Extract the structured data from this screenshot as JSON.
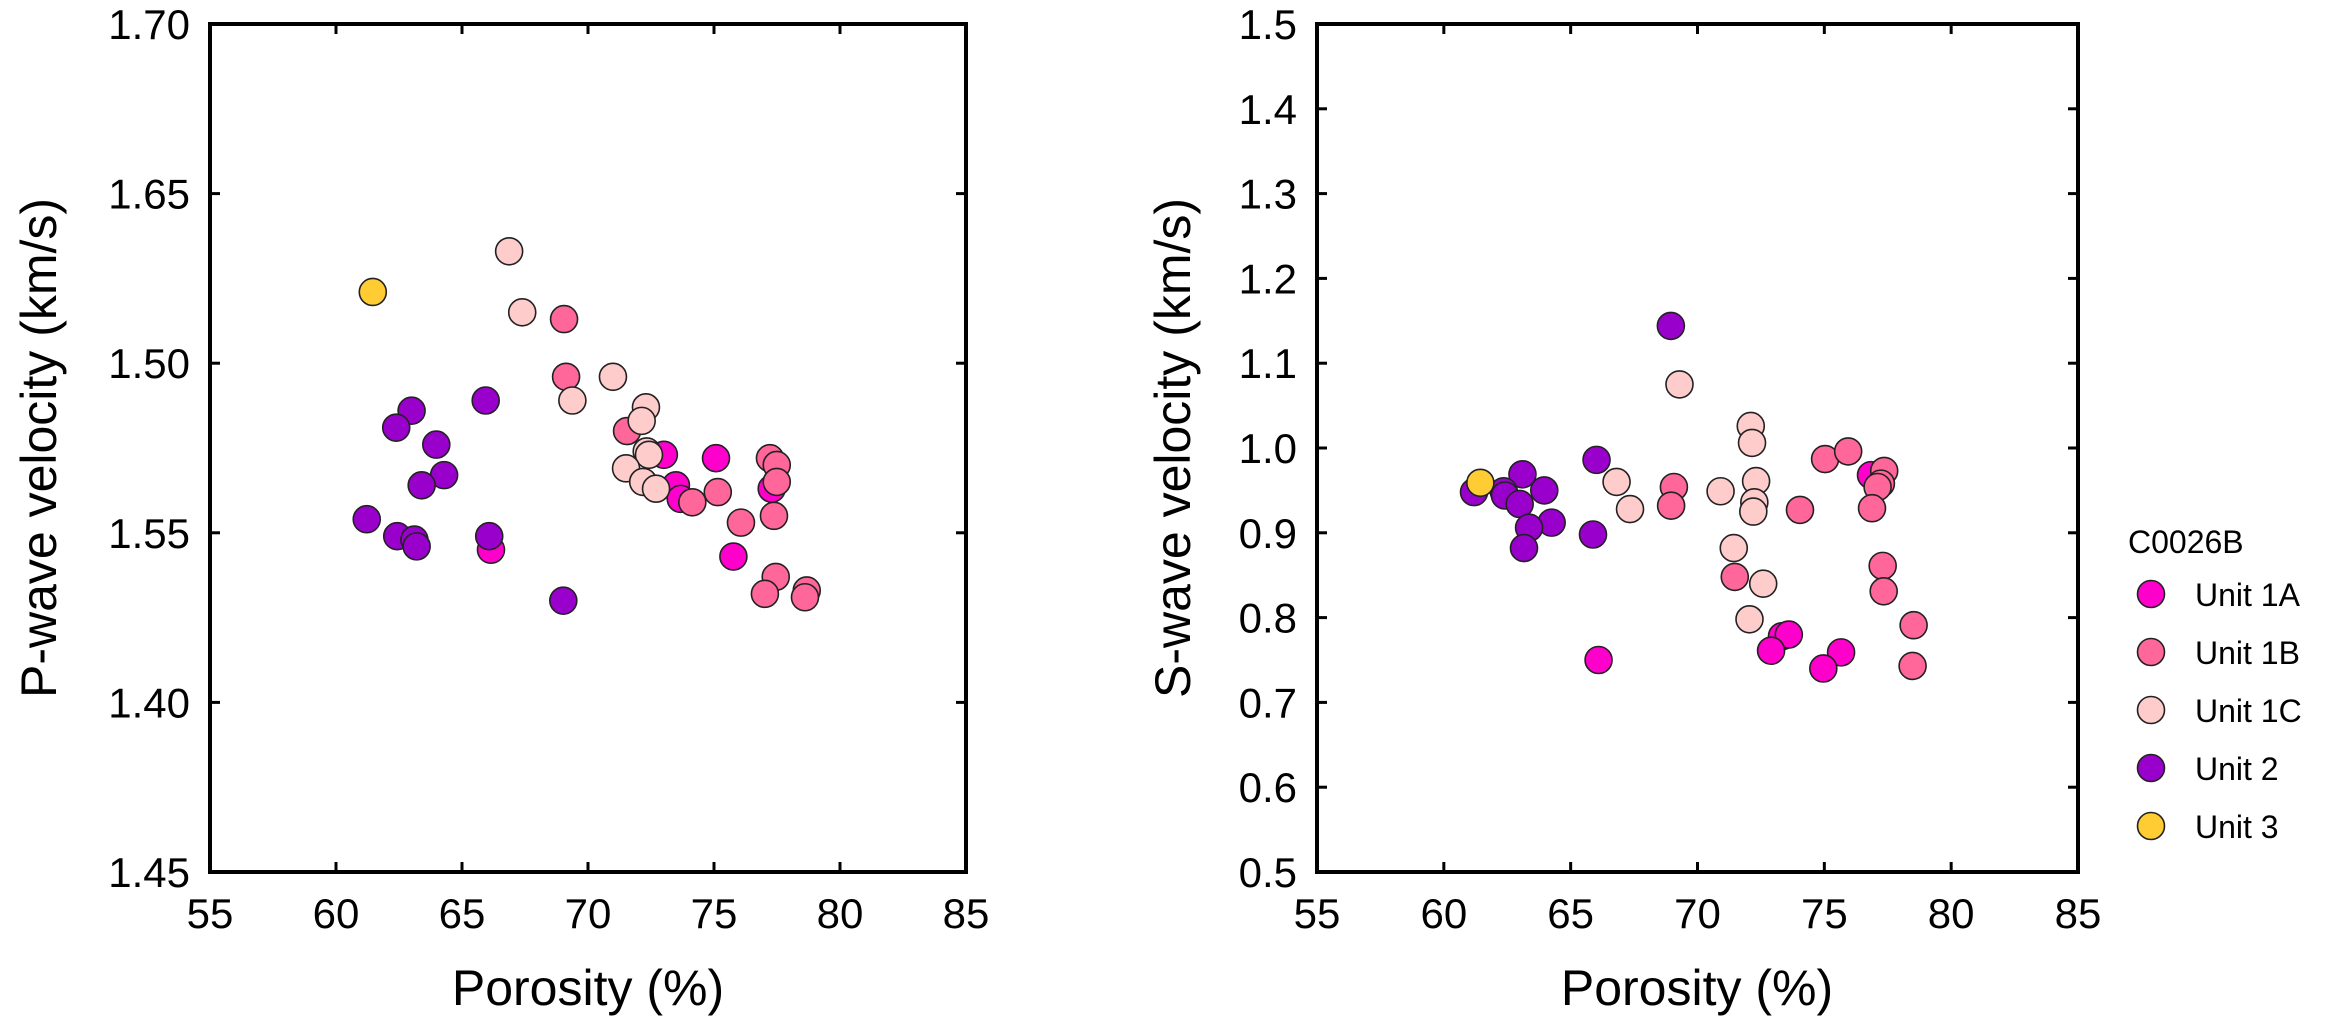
{
  "chart_data": [
    {
      "type": "scatter",
      "panel": "left",
      "xlabel": "Porosity (%)",
      "ylabel": "P-wave velocity (km/s)",
      "xlim": [
        55,
        85
      ],
      "ylim": [
        1.45,
        1.7
      ],
      "x_ticks": [
        55,
        60,
        65,
        70,
        75,
        80,
        85
      ],
      "x_tick_labels": [
        "55",
        "60",
        "65",
        "70",
        "75",
        "80",
        "85"
      ],
      "y_tick_labels_top_to_bottom": [
        "1.70",
        "1.65",
        "1.50",
        "1.55",
        "1.40",
        "1.45"
      ],
      "grid": false,
      "series": [
        {
          "name": "Unit 1A",
          "points": [
            [
              66.15,
              1.545
            ],
            [
              73.01,
              1.573
            ],
            [
              75.08,
              1.572
            ],
            [
              73.49,
              1.564
            ],
            [
              73.68,
              1.56
            ],
            [
              77.29,
              1.563
            ],
            [
              75.77,
              1.543
            ]
          ]
        },
        {
          "name": "Unit 1B",
          "points": [
            [
              69.05,
              1.613
            ],
            [
              69.13,
              1.596
            ],
            [
              71.55,
              1.58
            ],
            [
              77.22,
              1.572
            ],
            [
              77.49,
              1.57
            ],
            [
              74.14,
              1.559
            ],
            [
              75.15,
              1.562
            ],
            [
              77.49,
              1.565
            ],
            [
              76.07,
              1.553
            ],
            [
              77.38,
              1.555
            ],
            [
              77.45,
              1.537
            ],
            [
              77.02,
              1.532
            ],
            [
              78.68,
              1.533
            ],
            [
              78.61,
              1.531
            ]
          ]
        },
        {
          "name": "Unit 1C",
          "points": [
            [
              66.87,
              1.633
            ],
            [
              67.39,
              1.615
            ],
            [
              69.38,
              1.589
            ],
            [
              70.99,
              1.596
            ],
            [
              72.3,
              1.587
            ],
            [
              72.13,
              1.583
            ],
            [
              72.33,
              1.574
            ],
            [
              72.42,
              1.573
            ],
            [
              71.51,
              1.569
            ],
            [
              72.19,
              1.565
            ],
            [
              72.7,
              1.563
            ]
          ]
        },
        {
          "name": "Unit 2",
          "points": [
            [
              65.94,
              1.589
            ],
            [
              63.0,
              1.586
            ],
            [
              62.39,
              1.581
            ],
            [
              63.98,
              1.576
            ],
            [
              64.29,
              1.567
            ],
            [
              63.4,
              1.564
            ],
            [
              61.22,
              1.554
            ],
            [
              62.43,
              1.549
            ],
            [
              63.11,
              1.548
            ],
            [
              63.2,
              1.546
            ],
            [
              66.08,
              1.549
            ],
            [
              69.02,
              1.53
            ]
          ]
        },
        {
          "name": "Unit 3",
          "points": [
            [
              61.46,
              1.621
            ]
          ]
        }
      ]
    },
    {
      "type": "scatter",
      "panel": "right",
      "xlabel": "Porosity (%)",
      "ylabel": "S-wave velocity (km/s)",
      "xlim": [
        55,
        85
      ],
      "ylim": [
        0.5,
        1.5
      ],
      "x_ticks": [
        55,
        60,
        65,
        70,
        75,
        80,
        85
      ],
      "x_tick_labels": [
        "55",
        "60",
        "65",
        "70",
        "75",
        "80",
        "85"
      ],
      "y_ticks": [
        0.5,
        0.6,
        0.7,
        0.8,
        0.9,
        1.0,
        1.1,
        1.2,
        1.3,
        1.4,
        1.5
      ],
      "y_tick_labels": [
        "0.5",
        "0.6",
        "0.7",
        "0.8",
        "0.9",
        "1.0",
        "1.1",
        "1.2",
        "1.3",
        "1.4",
        "1.5"
      ],
      "grid": false,
      "series": [
        {
          "name": "Unit 1A",
          "points": [
            [
              66.1,
              0.75
            ],
            [
              73.33,
              0.778
            ],
            [
              73.6,
              0.78
            ],
            [
              72.9,
              0.761
            ],
            [
              76.84,
              0.968
            ],
            [
              75.66,
              0.759
            ],
            [
              74.96,
              0.74
            ]
          ]
        },
        {
          "name": "Unit 1B",
          "points": [
            [
              69.07,
              0.954
            ],
            [
              68.96,
              0.932
            ],
            [
              74.04,
              0.927
            ],
            [
              75.03,
              0.987
            ],
            [
              71.47,
              0.848
            ],
            [
              75.94,
              0.996
            ],
            [
              77.36,
              0.973
            ],
            [
              77.23,
              0.958
            ],
            [
              77.1,
              0.954
            ],
            [
              76.88,
              0.929
            ],
            [
              77.3,
              0.861
            ],
            [
              77.34,
              0.831
            ],
            [
              78.52,
              0.791
            ],
            [
              78.48,
              0.743
            ]
          ]
        },
        {
          "name": "Unit 1C",
          "points": [
            [
              66.81,
              0.96
            ],
            [
              67.34,
              0.928
            ],
            [
              69.29,
              1.075
            ],
            [
              72.1,
              1.026
            ],
            [
              72.15,
              1.006
            ],
            [
              70.91,
              0.949
            ],
            [
              72.31,
              0.961
            ],
            [
              72.24,
              0.936
            ],
            [
              72.2,
              0.925
            ],
            [
              71.43,
              0.882
            ],
            [
              72.59,
              0.84
            ],
            [
              72.05,
              0.798
            ]
          ]
        },
        {
          "name": "Unit 2",
          "points": [
            [
              61.19,
              0.948
            ],
            [
              63.1,
              0.969
            ],
            [
              62.36,
              0.949
            ],
            [
              62.41,
              0.944
            ],
            [
              62.99,
              0.934
            ],
            [
              63.96,
              0.95
            ],
            [
              64.25,
              0.912
            ],
            [
              63.36,
              0.906
            ],
            [
              63.16,
              0.882
            ],
            [
              66.02,
              0.986
            ],
            [
              65.88,
              0.898
            ],
            [
              68.95,
              1.144
            ]
          ]
        },
        {
          "name": "Unit 3",
          "points": [
            [
              61.44,
              0.959
            ]
          ]
        }
      ]
    }
  ],
  "legend": {
    "title": "C0026B",
    "placement": "right",
    "items": [
      {
        "label": "Unit 1A",
        "color": "#FF00CC"
      },
      {
        "label": "Unit 1B",
        "color": "#FF6699"
      },
      {
        "label": "Unit 1C",
        "color": "#FFCCCC"
      },
      {
        "label": "Unit 2",
        "color": "#9900CC"
      },
      {
        "label": "Unit 3",
        "color": "#FFCC33"
      }
    ]
  }
}
